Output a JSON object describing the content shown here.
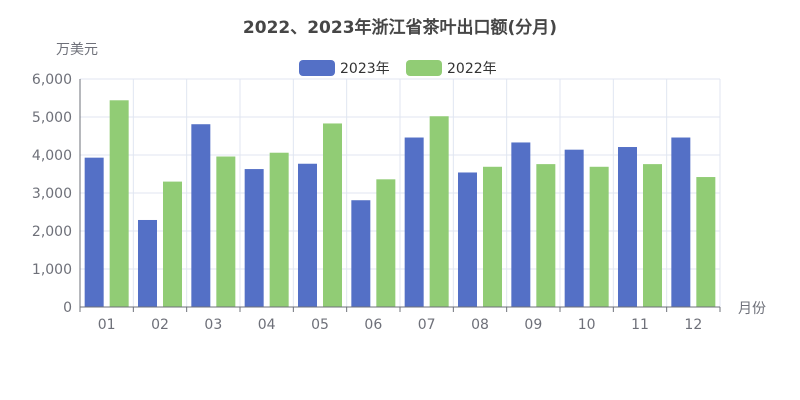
{
  "chart_data": {
    "type": "bar",
    "title": "2022、2023年浙江省茶叶出口额(分月)",
    "xlabel": "月份",
    "ylabel": "万美元",
    "categories": [
      "01",
      "02",
      "03",
      "04",
      "05",
      "06",
      "07",
      "08",
      "09",
      "10",
      "11",
      "12"
    ],
    "series": [
      {
        "name": "2023年",
        "color": "#5470c6",
        "values": [
          3930,
          2290,
          4810,
          3630,
          3770,
          2810,
          4460,
          3540,
          4330,
          4140,
          4210,
          4460
        ]
      },
      {
        "name": "2022年",
        "color": "#91cc75",
        "values": [
          5440,
          3300,
          3960,
          4060,
          4830,
          3360,
          5020,
          3690,
          3760,
          3690,
          3760,
          3420
        ]
      }
    ],
    "ylim": [
      0,
      6000
    ],
    "yticks": [
      "0",
      "1,000",
      "2,000",
      "3,000",
      "4,000",
      "5,000",
      "6,000"
    ],
    "grid": true,
    "legend_position": "top-center"
  }
}
